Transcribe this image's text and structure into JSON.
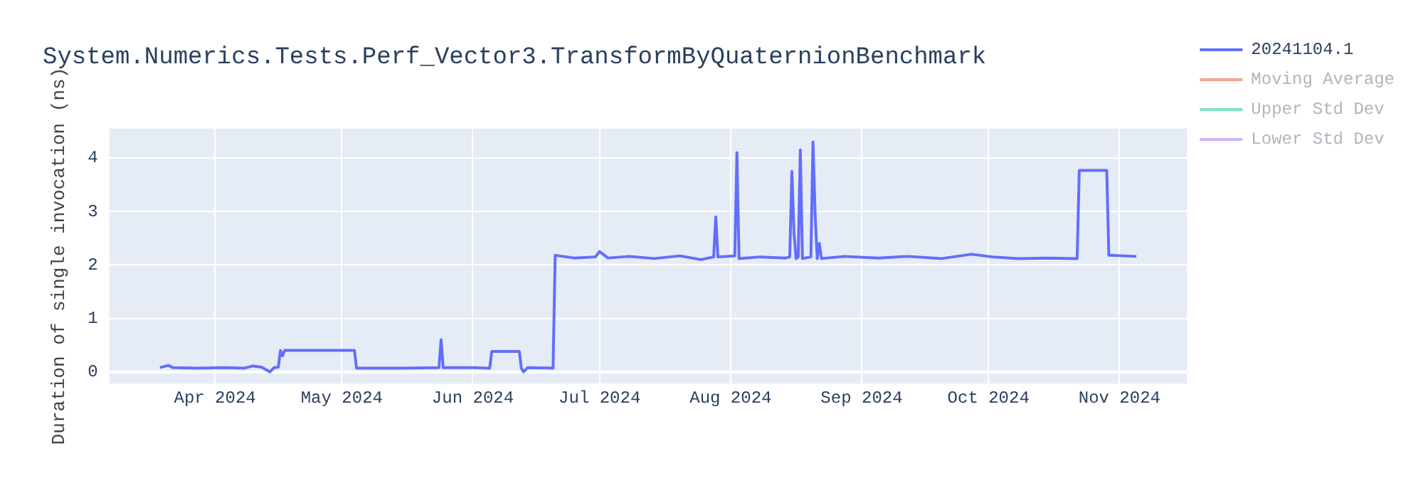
{
  "chart_data": {
    "type": "line",
    "title": "System.Numerics.Tests.Perf_Vector3.TransformByQuaternionBenchmark",
    "ylabel": "Duration of single invocation (ns)",
    "x": [
      "2024-03-19",
      "2024-03-21",
      "2024-03-22",
      "2024-03-28",
      "2024-04-03",
      "2024-04-08",
      "2024-04-10",
      "2024-04-12",
      "2024-04-14",
      "2024-04-15",
      "2024-04-16",
      "2024-04-16T12:00",
      "2024-04-17",
      "2024-04-17T12:00",
      "2024-05-04",
      "2024-05-04T12:00",
      "2024-05-15",
      "2024-05-24",
      "2024-05-24T12:00",
      "2024-05-25",
      "2024-06-01",
      "2024-06-05",
      "2024-06-05T12:00",
      "2024-06-12",
      "2024-06-12T12:00",
      "2024-06-13",
      "2024-06-14",
      "2024-06-20",
      "2024-06-20T12:00",
      "2024-06-25",
      "2024-06-30",
      "2024-07-01",
      "2024-07-03",
      "2024-07-08",
      "2024-07-14",
      "2024-07-20",
      "2024-07-25",
      "2024-07-28",
      "2024-07-28T12:00",
      "2024-07-29",
      "2024-08-02",
      "2024-08-02T12:00",
      "2024-08-03",
      "2024-08-08",
      "2024-08-14",
      "2024-08-15",
      "2024-08-15T12:00",
      "2024-08-16",
      "2024-08-16T12:00",
      "2024-08-17",
      "2024-08-17T12:00",
      "2024-08-18",
      "2024-08-20",
      "2024-08-20T12:00",
      "2024-08-21",
      "2024-08-21T12:00",
      "2024-08-22",
      "2024-08-22T12:00",
      "2024-08-28",
      "2024-09-05",
      "2024-09-12",
      "2024-09-20",
      "2024-09-27",
      "2024-10-02",
      "2024-10-08",
      "2024-10-15",
      "2024-10-22",
      "2024-10-22T12:00",
      "2024-10-29",
      "2024-10-29T12:00",
      "2024-11-02",
      "2024-11-05"
    ],
    "series": [
      {
        "name": "20241104.1",
        "color": "#636efa",
        "values": [
          0.08,
          0.12,
          0.08,
          0.07,
          0.08,
          0.07,
          0.11,
          0.09,
          0.0,
          0.08,
          0.09,
          0.4,
          0.3,
          0.4,
          0.4,
          0.07,
          0.07,
          0.08,
          0.6,
          0.08,
          0.08,
          0.07,
          0.38,
          0.38,
          0.07,
          0.0,
          0.08,
          0.07,
          2.18,
          2.13,
          2.15,
          2.25,
          2.13,
          2.16,
          2.12,
          2.17,
          2.1,
          2.15,
          2.9,
          2.15,
          2.17,
          4.1,
          2.12,
          2.15,
          2.13,
          2.15,
          3.75,
          2.6,
          2.12,
          2.15,
          4.15,
          2.12,
          2.15,
          4.3,
          2.95,
          2.12,
          2.4,
          2.12,
          2.16,
          2.13,
          2.16,
          2.12,
          2.2,
          2.15,
          2.12,
          2.13,
          2.12,
          3.77,
          3.77,
          2.18,
          2.17,
          2.16
        ]
      },
      {
        "name": "Moving Average",
        "color": "#f4a58f",
        "values": [
          null,
          null,
          null,
          null,
          null,
          null,
          null,
          null,
          null,
          null,
          null,
          null,
          null,
          null,
          null,
          null,
          null,
          null,
          null,
          null,
          null,
          null,
          null,
          null,
          null,
          null,
          null,
          null,
          null,
          null,
          null,
          null,
          null,
          null,
          null,
          null,
          null,
          null,
          null,
          null,
          null,
          null,
          null,
          null,
          null,
          null,
          null,
          null,
          null,
          null,
          null,
          null,
          null,
          null,
          null,
          null,
          null,
          null,
          null,
          null,
          null,
          null,
          null,
          null,
          null,
          null,
          null,
          null,
          null,
          null,
          null,
          null
        ]
      },
      {
        "name": "Upper Std Dev",
        "color": "#7fe3c3",
        "values": [
          null,
          null,
          null,
          null,
          null,
          null,
          null,
          null,
          null,
          null,
          null,
          null,
          null,
          null,
          null,
          null,
          null,
          null,
          null,
          null,
          null,
          null,
          null,
          null,
          null,
          null,
          null,
          null,
          null,
          null,
          null,
          null,
          null,
          null,
          null,
          null,
          null,
          null,
          null,
          null,
          null,
          null,
          null,
          null,
          null,
          null,
          null,
          null,
          null,
          null,
          null,
          null,
          null,
          null,
          null,
          null,
          null,
          null,
          null,
          null,
          null,
          null,
          null,
          null,
          null,
          null,
          null,
          null,
          null,
          null,
          null,
          null
        ]
      },
      {
        "name": "Lower Std Dev",
        "color": "#cdb3f8",
        "values": [
          null,
          null,
          null,
          null,
          null,
          null,
          null,
          null,
          null,
          null,
          null,
          null,
          null,
          null,
          null,
          null,
          null,
          null,
          null,
          null,
          null,
          null,
          null,
          null,
          null,
          null,
          null,
          null,
          null,
          null,
          null,
          null,
          null,
          null,
          null,
          null,
          null,
          null,
          null,
          null,
          null,
          null,
          null,
          null,
          null,
          null,
          null,
          null,
          null,
          null,
          null,
          null,
          null,
          null,
          null,
          null,
          null,
          null,
          null,
          null,
          null,
          null,
          null,
          null,
          null,
          null,
          null,
          null,
          null,
          null,
          null,
          null
        ]
      }
    ],
    "xlim": [
      "2024-03-07",
      "2024-11-17"
    ],
    "xticks": [
      {
        "value": "2024-04-01",
        "label": "Apr 2024"
      },
      {
        "value": "2024-05-01",
        "label": "May 2024"
      },
      {
        "value": "2024-06-01",
        "label": "Jun 2024"
      },
      {
        "value": "2024-07-01",
        "label": "Jul 2024"
      },
      {
        "value": "2024-08-01",
        "label": "Aug 2024"
      },
      {
        "value": "2024-09-01",
        "label": "Sep 2024"
      },
      {
        "value": "2024-10-01",
        "label": "Oct 2024"
      },
      {
        "value": "2024-11-01",
        "label": "Nov 2024"
      }
    ],
    "ylim": [
      -0.22,
      4.55
    ],
    "yticks": [
      0,
      1,
      2,
      3,
      4
    ],
    "grid": true,
    "legend": "top right",
    "marker": "none",
    "line_style": "solid"
  }
}
